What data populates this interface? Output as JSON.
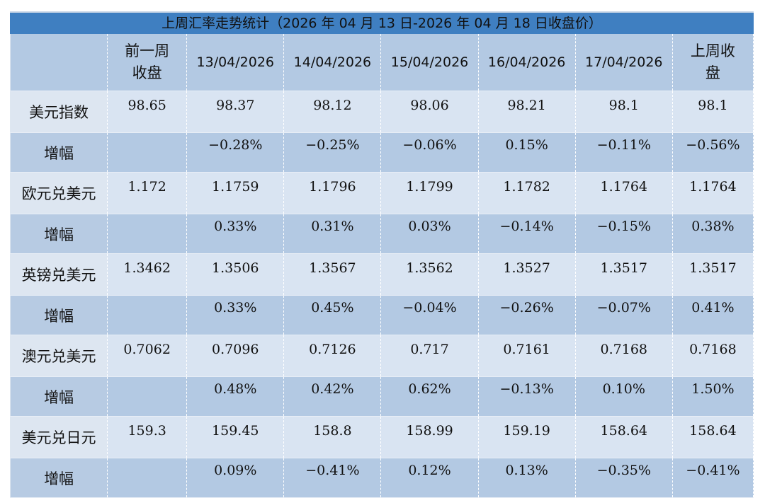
{
  "title": "上周汇率走势统计（2026 年 04 月 13 日-2026 年 04 月 18 日收盘价）",
  "headers": [
    "",
    "前一周\n收盘",
    "13/04/2026",
    "14/04/2026",
    "15/04/2026",
    "16/04/2026",
    "17/04/2026",
    "上周收\n盘"
  ],
  "rows": [
    {
      "label": "美元指数",
      "type": "value",
      "cells": [
        "98.65",
        "98.37",
        "98.12",
        "98.06",
        "98.21",
        "98.1",
        "98.1"
      ]
    },
    {
      "label": "增幅",
      "type": "pct",
      "cells": [
        "",
        "−0.28%",
        "−0.25%",
        "−0.06%",
        "0.15%",
        "−0.11%",
        "−0.56%"
      ]
    },
    {
      "label": "欧元兑美元",
      "type": "value",
      "cells": [
        "1.172",
        "1.1759",
        "1.1796",
        "1.1799",
        "1.1782",
        "1.1764",
        "1.1764"
      ]
    },
    {
      "label": "增幅",
      "type": "pct",
      "cells": [
        "",
        "0.33%",
        "0.31%",
        "0.03%",
        "−0.14%",
        "−0.15%",
        "0.38%"
      ]
    },
    {
      "label": "英镑兑美元",
      "type": "value",
      "cells": [
        "1.3462",
        "1.3506",
        "1.3567",
        "1.3562",
        "1.3527",
        "1.3517",
        "1.3517"
      ]
    },
    {
      "label": "增幅",
      "type": "pct",
      "cells": [
        "",
        "0.33%",
        "0.45%",
        "−0.04%",
        "−0.26%",
        "−0.07%",
        "0.41%"
      ]
    },
    {
      "label": "澳元兑美元",
      "type": "value",
      "cells": [
        "0.7062",
        "0.7096",
        "0.7126",
        "0.717",
        "0.7161",
        "0.7168",
        "0.7168"
      ]
    },
    {
      "label": "增幅",
      "type": "pct",
      "cells": [
        "",
        "0.48%",
        "0.42%",
        "0.62%",
        "−0.13%",
        "0.10%",
        "1.50%"
      ]
    },
    {
      "label": "美元兑日元",
      "type": "value",
      "cells": [
        "159.3",
        "159.45",
        "158.8",
        "158.99",
        "159.19",
        "158.64",
        "158.64"
      ]
    },
    {
      "label": "增幅",
      "type": "pct",
      "cells": [
        "",
        "0.09%",
        "−0.41%",
        "0.12%",
        "0.13%",
        "−0.35%",
        "−0.41%"
      ]
    }
  ]
}
